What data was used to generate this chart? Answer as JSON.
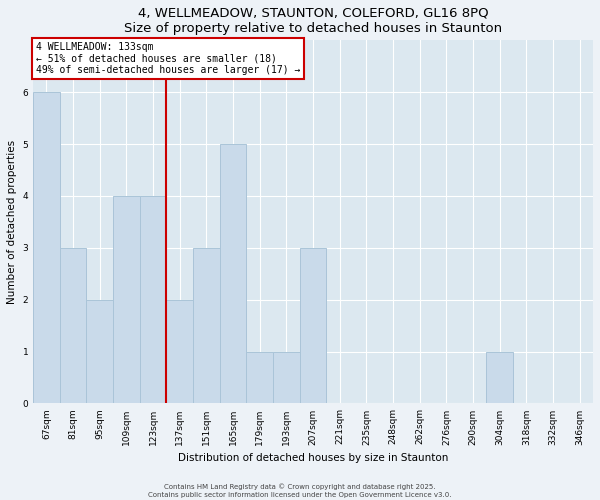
{
  "title": "4, WELLMEADOW, STAUNTON, COLEFORD, GL16 8PQ",
  "subtitle": "Size of property relative to detached houses in Staunton",
  "xlabel": "Distribution of detached houses by size in Staunton",
  "ylabel": "Number of detached properties",
  "bin_labels": [
    "67sqm",
    "81sqm",
    "95sqm",
    "109sqm",
    "123sqm",
    "137sqm",
    "151sqm",
    "165sqm",
    "179sqm",
    "193sqm",
    "207sqm",
    "221sqm",
    "235sqm",
    "248sqm",
    "262sqm",
    "276sqm",
    "290sqm",
    "304sqm",
    "318sqm",
    "332sqm",
    "346sqm"
  ],
  "bin_counts": [
    6,
    3,
    2,
    4,
    4,
    2,
    3,
    5,
    1,
    1,
    3,
    0,
    0,
    0,
    0,
    0,
    0,
    1,
    0,
    0,
    0
  ],
  "bar_color": "#c9daea",
  "bar_edge_color": "#aac4d8",
  "annotation_title": "4 WELLMEADOW: 133sqm",
  "annotation_line1": "← 51% of detached houses are smaller (18)",
  "annotation_line2": "49% of semi-detached houses are larger (17) →",
  "annotation_box_color": "#ffffff",
  "annotation_box_edge": "#cc0000",
  "property_line_color": "#cc0000",
  "ylim": [
    0,
    7
  ],
  "yticks": [
    0,
    1,
    2,
    3,
    4,
    5,
    6
  ],
  "footer1": "Contains HM Land Registry data © Crown copyright and database right 2025.",
  "footer2": "Contains public sector information licensed under the Open Government Licence v3.0.",
  "bg_color": "#edf2f7",
  "plot_bg_color": "#dce8f0",
  "grid_color": "#ffffff"
}
